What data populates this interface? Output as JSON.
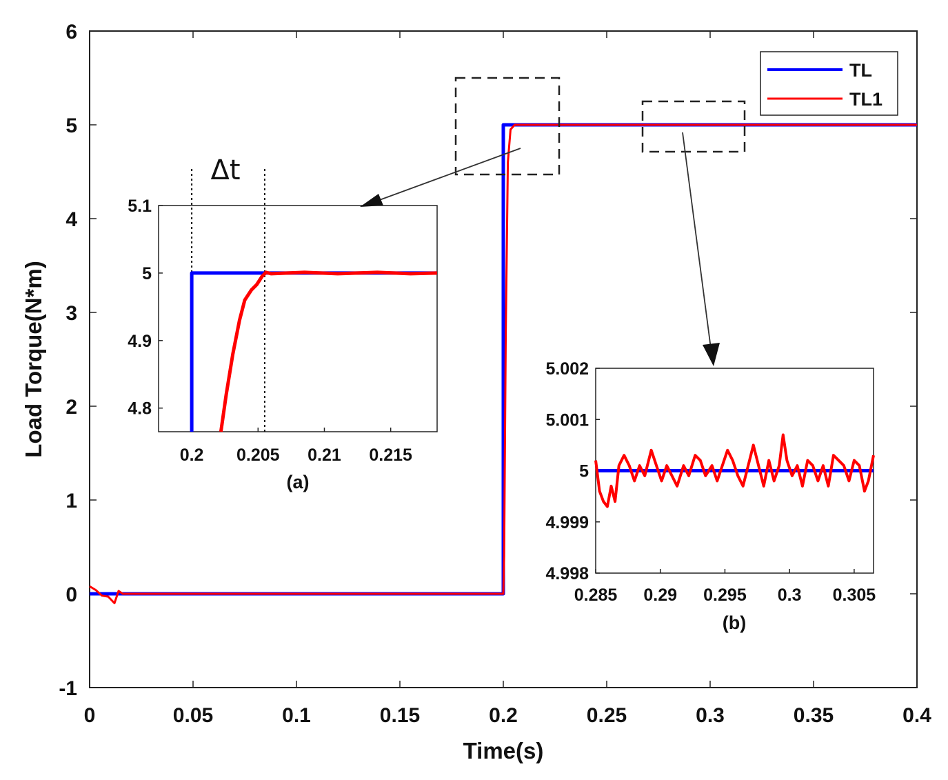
{
  "chart_data": [
    {
      "type": "line",
      "xlabel": "Time(s)",
      "ylabel": "Load Torque(N*m)",
      "xlim": [
        0,
        0.4
      ],
      "ylim": [
        -1,
        6
      ],
      "xticks": [
        "0",
        "0.05",
        "0.1",
        "0.15",
        "0.2",
        "0.25",
        "0.3",
        "0.35",
        "0.4"
      ],
      "yticks": [
        "-1",
        "0",
        "1",
        "2",
        "3",
        "4",
        "5",
        "6"
      ],
      "legend": [
        "TL",
        "TL1"
      ],
      "legend_position": "top-right",
      "annotation": "Δt",
      "series": [
        {
          "name": "TL",
          "color": "#0000ff",
          "points": [
            [
              0,
              0
            ],
            [
              0.2,
              0
            ],
            [
              0.2,
              5
            ],
            [
              0.4,
              5
            ]
          ]
        },
        {
          "name": "TL1",
          "color": "#ff0000",
          "points": [
            [
              0,
              0.08
            ],
            [
              0.003,
              0.04
            ],
            [
              0.006,
              -0.02
            ],
            [
              0.009,
              -0.03
            ],
            [
              0.012,
              -0.1
            ],
            [
              0.014,
              0.03
            ],
            [
              0.016,
              0
            ],
            [
              0.2,
              0
            ],
            [
              0.2004,
              0.4
            ],
            [
              0.2012,
              2.8
            ],
            [
              0.2022,
              4.6
            ],
            [
              0.2035,
              4.95
            ],
            [
              0.2055,
              5
            ],
            [
              0.4,
              5
            ]
          ]
        }
      ]
    },
    {
      "type": "line",
      "caption": "(a)",
      "xlim": [
        0.1975,
        0.2185
      ],
      "ylim": [
        4.765,
        5.1
      ],
      "xticks": [
        "0.2",
        "0.205",
        "0.21",
        "0.215"
      ],
      "yticks": [
        "4.8",
        "4.9",
        "5",
        "5.1"
      ],
      "series": [
        {
          "name": "TL",
          "color": "#0000ff",
          "points": [
            [
              0.2,
              4.765
            ],
            [
              0.2,
              5
            ],
            [
              0.2185,
              5
            ]
          ]
        },
        {
          "name": "TL1",
          "color": "#ff0000",
          "points": [
            [
              0.2022,
              4.765
            ],
            [
              0.2026,
              4.82
            ],
            [
              0.2031,
              4.88
            ],
            [
              0.2036,
              4.93
            ],
            [
              0.204,
              4.96
            ],
            [
              0.2045,
              4.975
            ],
            [
              0.2049,
              4.983
            ],
            [
              0.2053,
              4.995
            ],
            [
              0.2056,
              5.001
            ],
            [
              0.206,
              4.999
            ],
            [
              0.2085,
              5.001
            ],
            [
              0.211,
              4.999
            ],
            [
              0.214,
              5.001
            ],
            [
              0.2165,
              4.999
            ],
            [
              0.2185,
              5
            ]
          ]
        }
      ],
      "markers": [
        0.2,
        0.2055
      ]
    },
    {
      "type": "line",
      "caption": "(b)",
      "xlim": [
        0.285,
        0.3065
      ],
      "ylim": [
        4.998,
        5.002
      ],
      "xticks": [
        "0.285",
        "0.29",
        "0.295",
        "0.3",
        "0.305"
      ],
      "yticks": [
        "4.998",
        "4.999",
        "5",
        "5.001",
        "5.002"
      ],
      "series": [
        {
          "name": "TL",
          "color": "#0000ff",
          "points": [
            [
              0.285,
              5
            ],
            [
              0.3065,
              5
            ]
          ]
        },
        {
          "name": "TL1",
          "color": "#ff0000",
          "points": [
            [
              0.285,
              5.0002
            ],
            [
              0.2853,
              4.9996
            ],
            [
              0.2856,
              4.9994
            ],
            [
              0.2859,
              4.9993
            ],
            [
              0.2862,
              4.9997
            ],
            [
              0.2865,
              4.9994
            ],
            [
              0.2868,
              5.0001
            ],
            [
              0.2872,
              5.0003
            ],
            [
              0.2876,
              5.0001
            ],
            [
              0.288,
              4.9998
            ],
            [
              0.2884,
              5.0001
            ],
            [
              0.2888,
              4.9999
            ],
            [
              0.2893,
              5.0004
            ],
            [
              0.2897,
              5.0001
            ],
            [
              0.2901,
              4.9998
            ],
            [
              0.2905,
              5.0001
            ],
            [
              0.2909,
              4.9999
            ],
            [
              0.2913,
              4.9997
            ],
            [
              0.2918,
              5.0001
            ],
            [
              0.2922,
              4.9999
            ],
            [
              0.2927,
              5.0003
            ],
            [
              0.2931,
              5.0002
            ],
            [
              0.2935,
              4.9999
            ],
            [
              0.294,
              5.0001
            ],
            [
              0.2944,
              4.9998
            ],
            [
              0.2948,
              5.0001
            ],
            [
              0.2952,
              5.0004
            ],
            [
              0.2956,
              5.0002
            ],
            [
              0.296,
              4.9999
            ],
            [
              0.2964,
              4.9997
            ],
            [
              0.2968,
              5.0001
            ],
            [
              0.2972,
              5.0005
            ],
            [
              0.2976,
              5.0001
            ],
            [
              0.298,
              4.9997
            ],
            [
              0.2984,
              5.0002
            ],
            [
              0.2988,
              4.9998
            ],
            [
              0.2992,
              5.0001
            ],
            [
              0.2995,
              5.0007
            ],
            [
              0.2998,
              5.0002
            ],
            [
              0.3002,
              4.9999
            ],
            [
              0.3006,
              5.0001
            ],
            [
              0.301,
              4.9997
            ],
            [
              0.3014,
              5.0002
            ],
            [
              0.3018,
              5.0001
            ],
            [
              0.3022,
              4.9998
            ],
            [
              0.3026,
              5.0001
            ],
            [
              0.303,
              4.9997
            ],
            [
              0.3034,
              5.0003
            ],
            [
              0.3038,
              5.0002
            ],
            [
              0.3042,
              5.0001
            ],
            [
              0.3046,
              4.9998
            ],
            [
              0.305,
              5.0002
            ],
            [
              0.3054,
              5.0001
            ],
            [
              0.3058,
              4.9996
            ],
            [
              0.3061,
              4.9998
            ],
            [
              0.3065,
              5.0003
            ]
          ]
        }
      ]
    }
  ]
}
